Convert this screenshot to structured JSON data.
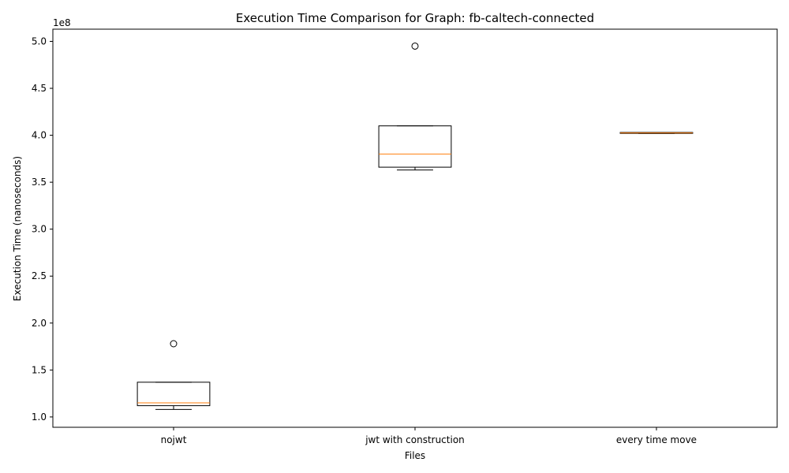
{
  "chart_data": {
    "type": "box",
    "title": "Execution Time Comparison for Graph: fb-caltech-connected",
    "xlabel": "Files",
    "ylabel": "Execution Time (nanoseconds)",
    "y_offset_label": "1e8",
    "ylim": [
      0.89,
      5.13
    ],
    "y_ticks": [
      1.0,
      1.5,
      2.0,
      2.5,
      3.0,
      3.5,
      4.0,
      4.5,
      5.0
    ],
    "y_tick_labels": [
      "1.0",
      "1.5",
      "2.0",
      "2.5",
      "3.0",
      "3.5",
      "4.0",
      "4.5",
      "5.0"
    ],
    "y_units": "1e8 nanoseconds",
    "categories": [
      "nojwt",
      "jwt with construction",
      "every time move"
    ],
    "boxes": [
      {
        "whisker_low": 1.08,
        "q1": 1.12,
        "median": 1.15,
        "q3": 1.37,
        "whisker_high": 1.37,
        "outliers": [
          1.78
        ]
      },
      {
        "whisker_low": 3.63,
        "q1": 3.66,
        "median": 3.8,
        "q3": 4.1,
        "whisker_high": 4.1,
        "outliers": [
          4.95
        ]
      },
      {
        "whisker_low": 4.02,
        "q1": 4.02,
        "median": 4.025,
        "q3": 4.03,
        "whisker_high": 4.03,
        "outliers": []
      }
    ],
    "colors": {
      "box": "#000000",
      "median": "#ff7f0e",
      "background": "#ffffff"
    },
    "grid": false,
    "legend": "none"
  }
}
